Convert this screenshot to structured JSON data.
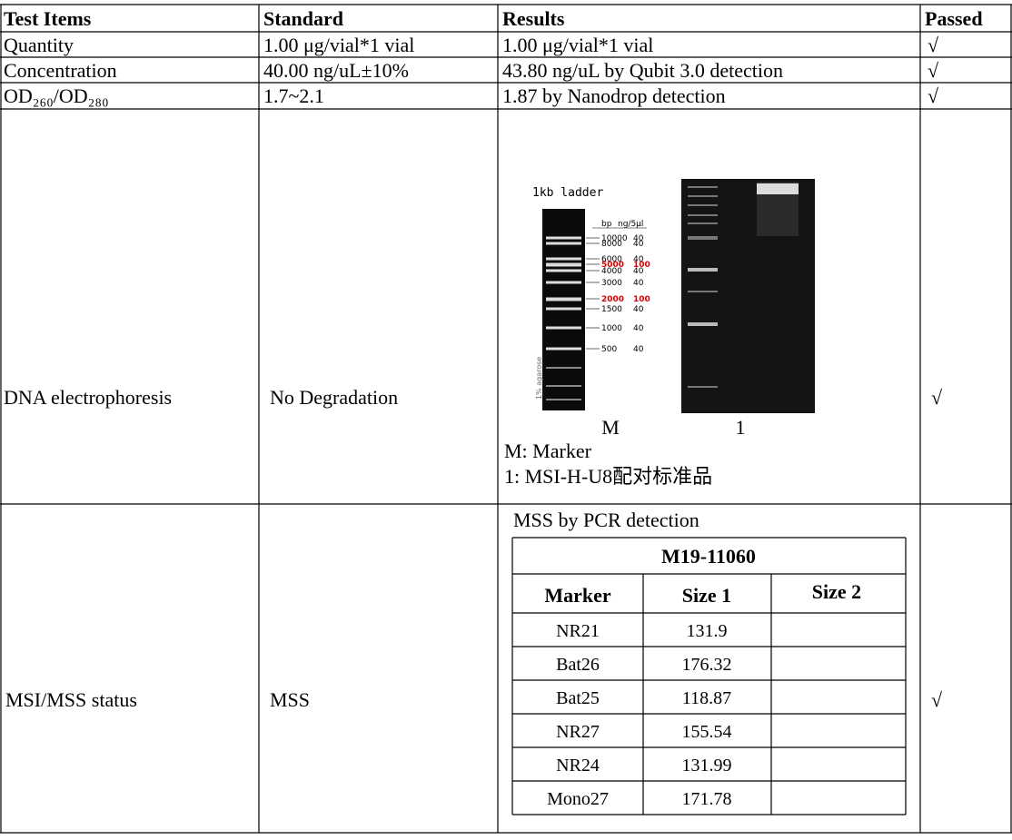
{
  "table": {
    "header": [
      "Test Items",
      "Standard",
      "Results",
      "Passed"
    ],
    "rows": [
      {
        "test": "Quantity",
        "standard": "1.00 μg/vial*1 vial",
        "result": "1.00 μg/vial*1 vial",
        "passed": "√"
      },
      {
        "test": "Concentration",
        "standard": "40.00 ng/uL±10%",
        "result": "43.80 ng/uL by Qubit 3.0 detection",
        "passed": "√"
      },
      {
        "test": "OD₂₆₀/OD₂₈₀",
        "standard": "1.7~2.1",
        "result": "1.87 by Nanodrop detection",
        "passed": "√"
      },
      {
        "test": "DNA electrophoresis",
        "standard": "No Degradation",
        "passed": "√",
        "result": {
          "ladder_title": "1kb ladder",
          "ladder_columns": [
            "bp",
            "ng/5µl"
          ],
          "ladder_bands": [
            [
              "10000",
              "40"
            ],
            [
              "8000",
              "40"
            ],
            [
              "6000",
              "40"
            ],
            [
              "5000",
              "100"
            ],
            [
              "4000",
              "40"
            ],
            [
              "3000",
              "40"
            ],
            [
              "2000",
              "100"
            ],
            [
              "1500",
              "40"
            ],
            [
              "1000",
              "40"
            ],
            [
              "500",
              "40"
            ]
          ],
          "gel_note": "1% agarose",
          "lanes": [
            "M",
            "1"
          ],
          "legend": [
            "M: Marker",
            "1: MSI-H-U8配对标准品"
          ]
        }
      },
      {
        "test": "MSI/MSS status",
        "standard": "MSS",
        "passed": "√",
        "result": {
          "caption": "MSS by PCR detection",
          "sample": "M19-11060",
          "columns": [
            "Marker",
            "Size 1",
            "Size 2"
          ],
          "rows": [
            [
              "NR21",
              "131.9"
            ],
            [
              "Bat26",
              "176.32"
            ],
            [
              "Bat25",
              "118.87"
            ],
            [
              "NR27",
              "155.54"
            ],
            [
              "NR24",
              "131.99"
            ],
            [
              "Mono27",
              "171.78"
            ]
          ]
        }
      }
    ]
  }
}
